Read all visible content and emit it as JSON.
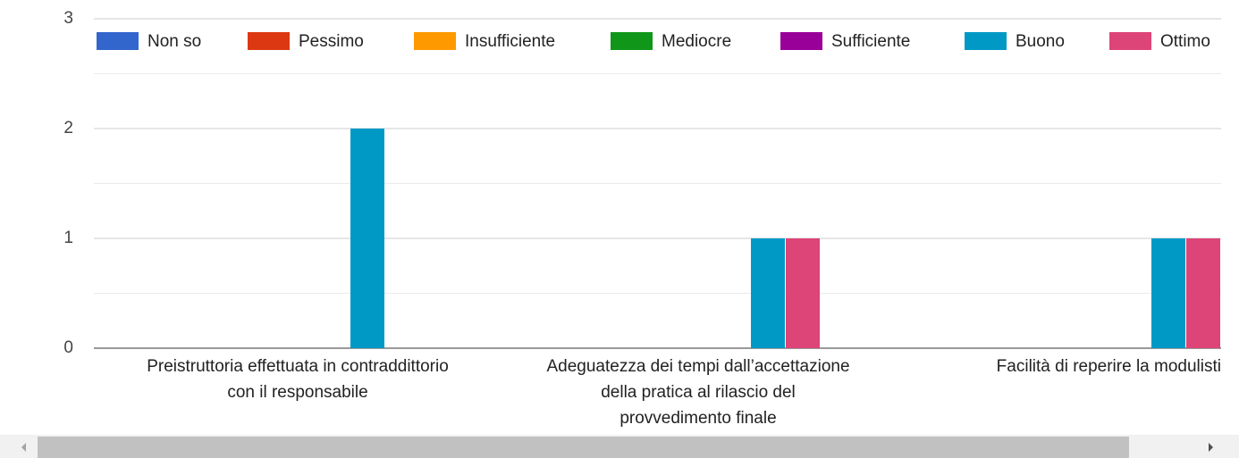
{
  "chart_data": {
    "type": "bar",
    "categories": [
      [
        "Preistruttoria effettuata in contraddittorio",
        "con il responsabile"
      ],
      [
        "Adeguatezza dei tempi dall’accettazione",
        "della pratica al rilascio del",
        "provvedimento finale"
      ],
      [
        "Facilità di reperire la modulisti"
      ]
    ],
    "series": [
      {
        "name": "Non so",
        "color": "#3366cc",
        "values": [
          0,
          0,
          0
        ]
      },
      {
        "name": "Pessimo",
        "color": "#dc3912",
        "values": [
          0,
          0,
          0
        ]
      },
      {
        "name": "Insufficiente",
        "color": "#ff9900",
        "values": [
          0,
          0,
          0
        ]
      },
      {
        "name": "Mediocre",
        "color": "#109618",
        "values": [
          0,
          0,
          0
        ]
      },
      {
        "name": "Sufficiente",
        "color": "#990099",
        "values": [
          0,
          0,
          0
        ]
      },
      {
        "name": "Buono",
        "color": "#0099c6",
        "values": [
          2,
          1,
          1
        ]
      },
      {
        "name": "Ottimo",
        "color": "#dd4477",
        "values": [
          0,
          1,
          1
        ]
      }
    ],
    "ylim": [
      0,
      3
    ],
    "yticks": [
      0,
      1,
      2,
      3
    ],
    "minor_gridlines": [
      0.5,
      1.5,
      2.5
    ],
    "grid": true,
    "legend": "top"
  }
}
